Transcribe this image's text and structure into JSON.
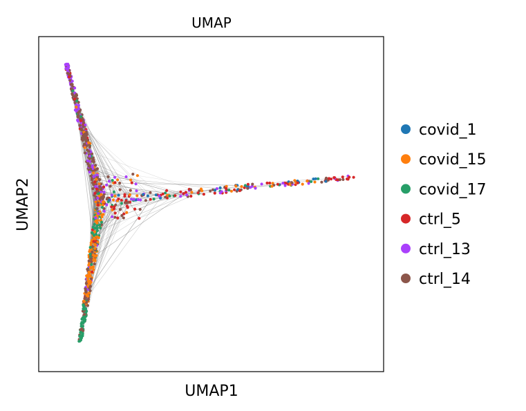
{
  "chart_data": {
    "type": "scatter",
    "title": "UMAP",
    "xlabel": "UMAP1",
    "ylabel": "UMAP2",
    "xlim": [
      0,
      100
    ],
    "ylim": [
      0,
      100
    ],
    "grid": false,
    "ticks": false,
    "legend_placement": "right",
    "edge_color": "#808080",
    "series": [
      {
        "name": "covid_1",
        "color": "#1f77b4"
      },
      {
        "name": "covid_15",
        "color": "#ff7f0e"
      },
      {
        "name": "covid_17",
        "color": "#279e68"
      },
      {
        "name": "ctrl_5",
        "color": "#d62728"
      },
      {
        "name": "ctrl_13",
        "color": "#aa40fc"
      },
      {
        "name": "ctrl_14",
        "color": "#8c564b"
      }
    ],
    "structure": {
      "junction": [
        18,
        51
      ],
      "arms": [
        {
          "from": [
            18,
            51
          ],
          "to": [
            8,
            92
          ],
          "series_mix": [
            0,
            0.05,
            0.05,
            0.05,
            0.25,
            0.6
          ]
        },
        {
          "from": [
            18,
            51
          ],
          "to": [
            91,
            58
          ],
          "series_mix": [
            0.1,
            0.15,
            0.1,
            0.3,
            0.15,
            0.2
          ]
        },
        {
          "from": [
            18,
            51
          ],
          "to": [
            12,
            9
          ],
          "series_mix": [
            0.02,
            0.45,
            0.33,
            0.05,
            0.05,
            0.1
          ]
        }
      ]
    }
  }
}
